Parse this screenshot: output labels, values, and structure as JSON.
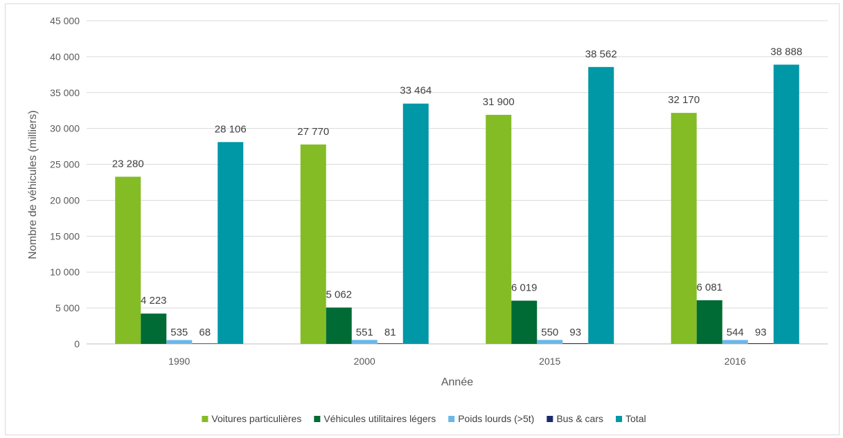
{
  "chart_data": {
    "type": "bar",
    "xlabel": "Année",
    "ylabel": "Nombre de véhicules (milliers)",
    "ylim": [
      0,
      45000
    ],
    "yticks": [
      0,
      5000,
      10000,
      15000,
      20000,
      25000,
      30000,
      35000,
      40000,
      45000
    ],
    "ytick_labels": [
      "0",
      "5 000",
      "10 000",
      "15 000",
      "20 000",
      "25 000",
      "30 000",
      "35 000",
      "40 000",
      "45 000"
    ],
    "categories": [
      "1990",
      "2000",
      "2015",
      "2016"
    ],
    "grid": "horizontal",
    "legend_position": "bottom",
    "series": [
      {
        "name": "Voitures particulières",
        "color": "#84bc26",
        "values": [
          23280,
          27770,
          31900,
          32170
        ],
        "labels": [
          "23 280",
          "27 770",
          "31 900",
          "32 170"
        ]
      },
      {
        "name": "Véhicules utilitaires légers",
        "color": "#006b35",
        "values": [
          4223,
          5062,
          6019,
          6081
        ],
        "labels": [
          "4 223",
          "5 062",
          "6 019",
          "6 081"
        ]
      },
      {
        "name": "Poids lourds (>5t)",
        "color": "#6bb7e8",
        "values": [
          535,
          551,
          550,
          544
        ],
        "labels": [
          "535",
          "551",
          "550",
          "544"
        ]
      },
      {
        "name": "Bus & cars",
        "color": "#1a2a6c",
        "values": [
          68,
          81,
          93,
          93
        ],
        "labels": [
          "68",
          "81",
          "93",
          "93"
        ]
      },
      {
        "name": "Total",
        "color": "#0097a7",
        "values": [
          28106,
          33464,
          38562,
          38888
        ],
        "labels": [
          "28 106",
          "33 464",
          "38 562",
          "38 888"
        ]
      }
    ]
  }
}
